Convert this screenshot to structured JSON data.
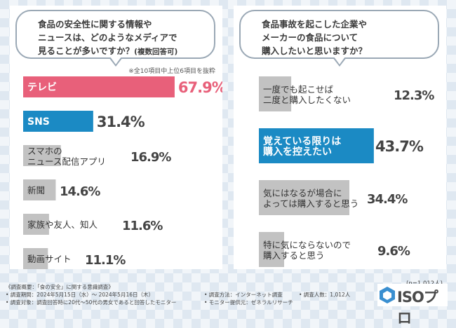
{
  "left": {
    "question_lines": [
      "食品の安全性に関する情報や",
      "ニュースは、どのようなメディアで",
      "見ることが多いですか？"
    ],
    "question_note": "(複数回答可)",
    "subnote": "※全10項目中上位6項目を抜粋"
  },
  "right": {
    "question_lines": [
      "食品事故を起こした企業や",
      "メーカーの食品について",
      "購入したいと思いますか？"
    ],
    "n_note": "(n=1,012人)"
  },
  "footer": {
    "lines": [
      "《調査概要：「食の安全」に関する意識調査》",
      "• 調査期間：2024年5月15日（水）～ 2024年5月16日（木）",
      "• 調査対象：調査回答時に20代～50代の男女であると回答したモニター",
      "• 調査方法：インターネット調査",
      "• 調査人数：1,012人",
      "• モニター提供元：ゼネラルリサーチ"
    ]
  },
  "logo": {
    "text": "ISOプロ",
    "icon": "hexagon-logo-icon"
  },
  "colors": {
    "pink": "#e8607a",
    "blue": "#1b8ac4",
    "gray": "#c2c2c2",
    "label_light": "#ffffff",
    "label_dark": "#333333"
  },
  "chart_data": [
    {
      "type": "bar",
      "orientation": "horizontal",
      "categories": [
        "テレビ",
        "SNS",
        "スマホの\nニュース配信アプリ",
        "新聞",
        "家族や友人、知人",
        "動画サイト"
      ],
      "values": [
        67.9,
        31.4,
        16.9,
        14.6,
        11.6,
        11.1
      ],
      "value_labels": [
        "67.9%",
        "31.4%",
        "16.9%",
        "14.6%",
        "11.6%",
        "11.1%"
      ],
      "highlight": [
        "pink",
        "blue",
        "gray",
        "gray",
        "gray",
        "gray"
      ],
      "unit": "%"
    },
    {
      "type": "bar",
      "orientation": "horizontal",
      "categories": [
        "一度でも起こせば\n二度と購入したくない",
        "覚えている限りは\n購入を控えたい",
        "気にはなるが場合に\nよっては購入すると思う",
        "特に気にならないので\n購入すると思う"
      ],
      "values": [
        12.3,
        43.7,
        34.4,
        9.6
      ],
      "value_labels": [
        "12.3%",
        "43.7%",
        "34.4%",
        "9.6%"
      ],
      "highlight": [
        "gray",
        "blue",
        "gray",
        "gray"
      ],
      "unit": "%"
    }
  ]
}
